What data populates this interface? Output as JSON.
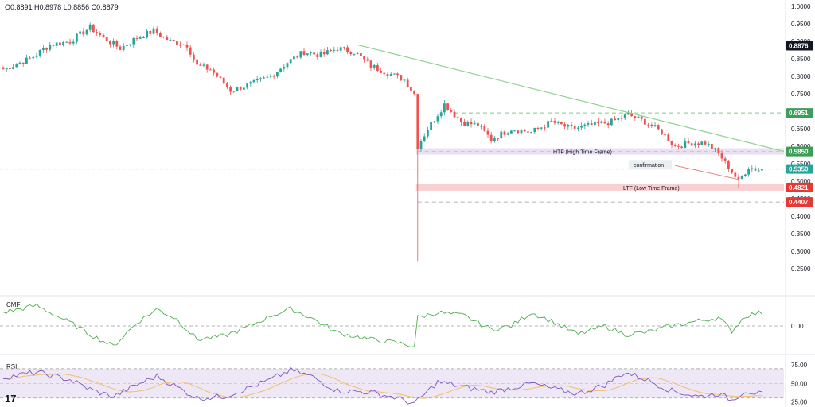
{
  "ohlc": {
    "o": "O0.8891",
    "h": "H0.8978",
    "l": "L0.8856",
    "c": "C0.8879"
  },
  "logo": "17",
  "colors": {
    "up": "#26a69a",
    "down": "#ef5350",
    "trendline": "#8fd08f",
    "htf_band": "#e9e0f2",
    "ltf_band": "#f8d0d3",
    "cmf": "#4caf50",
    "rsi": "#7e57c2",
    "rsi_ma": "#f4c06b",
    "rsi_band": "#ede7f6",
    "last_price": "#131722",
    "green_tag": "#3d9e5a",
    "red_tag": "#e53935"
  },
  "chart_data": [
    {
      "type": "candlestick",
      "name": "price",
      "yticks": [
        "1.0000",
        "0.9500",
        "0.9000",
        "0.8500",
        "0.8000",
        "0.7500",
        "0.7000",
        "0.6500",
        "0.6000",
        "0.5500",
        "0.5000",
        "0.4500",
        "0.4000",
        "0.3500",
        "0.3000",
        "0.2500"
      ],
      "ylim": [
        0.25,
        1.0
      ],
      "waypoints": [
        [
          0,
          0.82
        ],
        [
          8,
          0.85
        ],
        [
          14,
          0.89
        ],
        [
          20,
          0.9
        ],
        [
          26,
          0.94
        ],
        [
          30,
          0.91
        ],
        [
          35,
          0.88
        ],
        [
          40,
          0.91
        ],
        [
          45,
          0.93
        ],
        [
          50,
          0.9
        ],
        [
          55,
          0.89
        ],
        [
          58,
          0.83
        ],
        [
          62,
          0.82
        ],
        [
          68,
          0.76
        ],
        [
          75,
          0.78
        ],
        [
          80,
          0.8
        ],
        [
          85,
          0.84
        ],
        [
          90,
          0.87
        ],
        [
          95,
          0.86
        ],
        [
          100,
          0.88
        ],
        [
          105,
          0.87
        ],
        [
          110,
          0.83
        ],
        [
          115,
          0.81
        ],
        [
          120,
          0.79
        ],
        [
          123,
          0.75
        ],
        [
          124,
          0.6
        ],
        [
          127,
          0.65
        ],
        [
          132,
          0.72
        ],
        [
          137,
          0.67
        ],
        [
          142,
          0.66
        ],
        [
          146,
          0.62
        ],
        [
          152,
          0.65
        ],
        [
          158,
          0.64
        ],
        [
          164,
          0.67
        ],
        [
          170,
          0.65
        ],
        [
          176,
          0.66
        ],
        [
          182,
          0.67
        ],
        [
          187,
          0.69
        ],
        [
          192,
          0.67
        ],
        [
          197,
          0.64
        ],
        [
          201,
          0.6
        ],
        [
          206,
          0.61
        ],
        [
          210,
          0.61
        ],
        [
          214,
          0.58
        ],
        [
          217,
          0.54
        ],
        [
          220,
          0.5
        ],
        [
          223,
          0.54
        ],
        [
          227,
          0.53
        ]
      ],
      "notable": {
        "spike_low": 0.272,
        "recent_low": 0.48
      },
      "levels": [
        {
          "value": 0.6951,
          "label": "0.6951",
          "style": "dashed-green",
          "tag": "green"
        },
        {
          "value": 0.585,
          "label": "0.5850",
          "style": "band",
          "tag": "green"
        },
        {
          "value": 0.4821,
          "label": "0.4821",
          "style": "band",
          "tag": "red"
        },
        {
          "value": 0.4407,
          "label": "0.4407",
          "style": "dashed-grey",
          "tag": "red"
        }
      ],
      "last_price": {
        "value": 0.8876,
        "label": "0.8876"
      },
      "current_price": {
        "value": 0.535,
        "label": "0.5350"
      },
      "annotations": [
        {
          "text": "HTF (High Time Frame)"
        },
        {
          "text": "LTF (Low Time Frame)"
        },
        {
          "text": "confirmation"
        }
      ],
      "trendline": {
        "from": [
          0.89
        ],
        "to": [
          0.585
        ]
      }
    },
    {
      "type": "line",
      "name": "CMF",
      "title": "CMF",
      "ytick": "0.00",
      "waypoints": [
        [
          0,
          0.08
        ],
        [
          10,
          0.12
        ],
        [
          20,
          0.02
        ],
        [
          27,
          -0.06
        ],
        [
          33,
          -0.12
        ],
        [
          40,
          0.02
        ],
        [
          46,
          0.1
        ],
        [
          52,
          0.04
        ],
        [
          58,
          -0.08
        ],
        [
          66,
          -0.06
        ],
        [
          74,
          0.0
        ],
        [
          80,
          0.06
        ],
        [
          86,
          0.1
        ],
        [
          92,
          0.05
        ],
        [
          100,
          -0.04
        ],
        [
          110,
          -0.08
        ],
        [
          118,
          -0.1
        ],
        [
          123,
          -0.12
        ],
        [
          124,
          0.05
        ],
        [
          130,
          0.08
        ],
        [
          138,
          0.06
        ],
        [
          146,
          -0.02
        ],
        [
          152,
          0.0
        ],
        [
          158,
          0.08
        ],
        [
          165,
          0.02
        ],
        [
          172,
          -0.05
        ],
        [
          180,
          0.0
        ],
        [
          186,
          -0.05
        ],
        [
          192,
          -0.04
        ],
        [
          200,
          0.0
        ],
        [
          208,
          0.03
        ],
        [
          214,
          0.05
        ],
        [
          218,
          -0.03
        ],
        [
          222,
          0.06
        ],
        [
          227,
          0.08
        ]
      ]
    },
    {
      "type": "line",
      "name": "RSI",
      "title": "RSI",
      "yticks": [
        "75.00",
        "50.00",
        "25.00"
      ],
      "ylim": [
        20,
        85
      ],
      "waypoints": [
        [
          0,
          58
        ],
        [
          10,
          65
        ],
        [
          20,
          55
        ],
        [
          27,
          40
        ],
        [
          33,
          32
        ],
        [
          40,
          48
        ],
        [
          46,
          60
        ],
        [
          52,
          45
        ],
        [
          58,
          30
        ],
        [
          66,
          32
        ],
        [
          74,
          45
        ],
        [
          80,
          55
        ],
        [
          86,
          68
        ],
        [
          92,
          60
        ],
        [
          100,
          40
        ],
        [
          110,
          38
        ],
        [
          118,
          30
        ],
        [
          123,
          22
        ],
        [
          126,
          35
        ],
        [
          130,
          52
        ],
        [
          138,
          45
        ],
        [
          146,
          38
        ],
        [
          152,
          44
        ],
        [
          158,
          50
        ],
        [
          165,
          42
        ],
        [
          172,
          36
        ],
        [
          180,
          48
        ],
        [
          186,
          65
        ],
        [
          192,
          56
        ],
        [
          200,
          40
        ],
        [
          208,
          32
        ],
        [
          214,
          36
        ],
        [
          218,
          27
        ],
        [
          222,
          40
        ],
        [
          227,
          35
        ]
      ]
    }
  ]
}
